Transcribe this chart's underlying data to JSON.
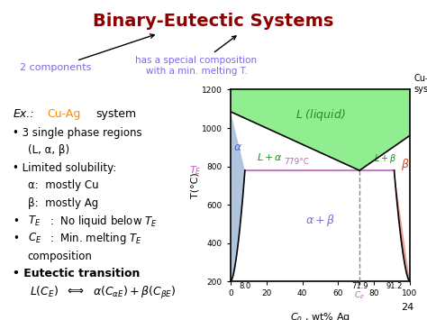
{
  "title": "Binary-Eutectic Systems",
  "title_color": "#8B0000",
  "bg_color": "#ffffff",
  "slide_number": "24",
  "diagram": {
    "xlim": [
      0,
      100
    ],
    "ylim": [
      200,
      1200
    ],
    "xticks": [
      0,
      20,
      40,
      60,
      80,
      100
    ],
    "yticks": [
      200,
      400,
      600,
      800,
      1000,
      1200
    ],
    "ylabel": "T(°C)",
    "eutectic_T": 779,
    "eutectic_C": 71.9,
    "alpha_solvus": 8.0,
    "beta_solvus": 91.2,
    "cu_melt_T": 1085,
    "ag_melt_T": 961,
    "liquid_color": "#90EE90",
    "alpha_color": "#B0C4DE",
    "beta_color": "#E8A090",
    "eutectic_line_color": "#C060C0",
    "dashed_line_color": "#C060C0"
  }
}
